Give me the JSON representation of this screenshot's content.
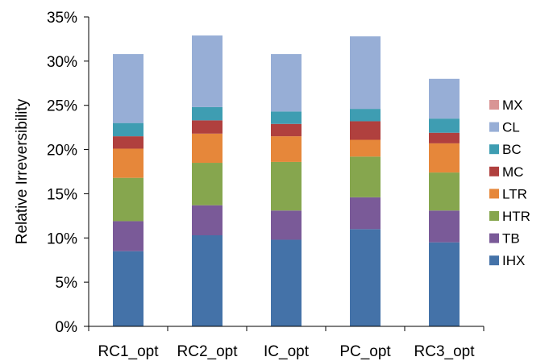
{
  "chart_data": {
    "type": "bar",
    "stacked": true,
    "title": "",
    "xlabel": "",
    "ylabel": "Relative Irreversibility",
    "ylim": [
      0,
      35
    ],
    "y_ticks": [
      "0%",
      "5%",
      "10%",
      "15%",
      "20%",
      "25%",
      "30%",
      "35%"
    ],
    "y_unit": "%",
    "grid": false,
    "legend_position": "right",
    "categories": [
      "RC1_opt",
      "RC2_opt",
      "IC_opt",
      "PC_opt",
      "RC3_opt"
    ],
    "series": [
      {
        "name": "IHX",
        "color": "#4472a8",
        "values": [
          8.5,
          10.3,
          9.8,
          11.0,
          9.5
        ]
      },
      {
        "name": "TB",
        "color": "#7a5a98",
        "values": [
          3.4,
          3.4,
          3.3,
          3.6,
          3.6
        ]
      },
      {
        "name": "HTR",
        "color": "#86a64e",
        "values": [
          4.9,
          4.8,
          5.5,
          4.6,
          4.3
        ]
      },
      {
        "name": "LTR",
        "color": "#e6873a",
        "values": [
          3.3,
          3.3,
          2.9,
          1.9,
          3.3
        ]
      },
      {
        "name": "MC",
        "color": "#b0403e",
        "values": [
          1.4,
          1.5,
          1.4,
          2.1,
          1.2
        ]
      },
      {
        "name": "BC",
        "color": "#3e9db2",
        "values": [
          1.5,
          1.5,
          1.4,
          1.4,
          1.6
        ]
      },
      {
        "name": "CL",
        "color": "#97aed6",
        "values": [
          7.8,
          8.1,
          6.5,
          8.2,
          4.5
        ]
      },
      {
        "name": "MX",
        "color": "#d99595",
        "values": [
          0.0,
          0.0,
          0.0,
          0.0,
          0.0
        ]
      }
    ]
  }
}
